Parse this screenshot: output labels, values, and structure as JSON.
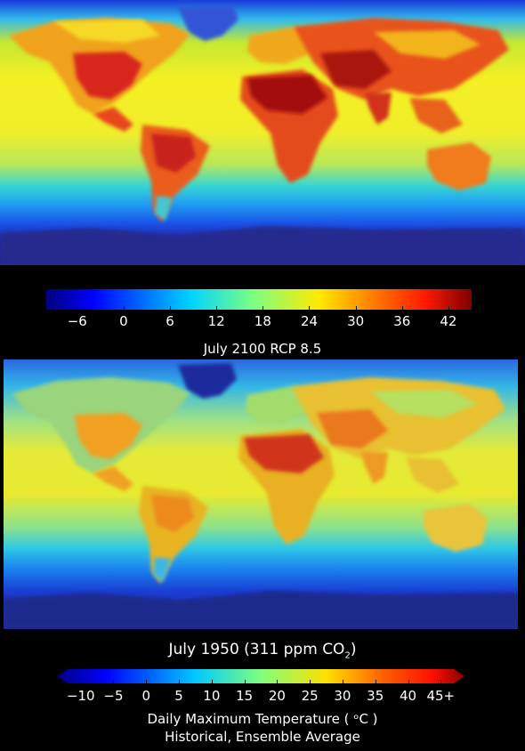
{
  "top_panel": {
    "title": "July 2100 RCP 8.5",
    "colorbar_ticks": [
      "−6",
      "0",
      "6",
      "12",
      "18",
      "24",
      "30",
      "36",
      "42"
    ],
    "colorbar_range": [
      -10,
      45
    ]
  },
  "bottom_panel": {
    "title_main": "July 1950 (311 ppm CO",
    "title_sub": "2",
    "title_end": ")",
    "colorbar_ticks": [
      "−10",
      "−5",
      "0",
      "5",
      "10",
      "15",
      "20",
      "25",
      "30",
      "35",
      "40",
      "45+"
    ],
    "colorbar_range": [
      -12,
      47
    ],
    "axis_title": "Daily Maximum Temperature ( ᵒC )",
    "axis_subtitle": "Historical, Ensemble Average"
  },
  "colors": {
    "colormap": [
      "#00007f",
      "#0000ff",
      "#0080ff",
      "#00e5ff",
      "#7fff7f",
      "#ffe600",
      "#ff8000",
      "#ff1a00",
      "#7f0000"
    ],
    "background": "#000000"
  }
}
